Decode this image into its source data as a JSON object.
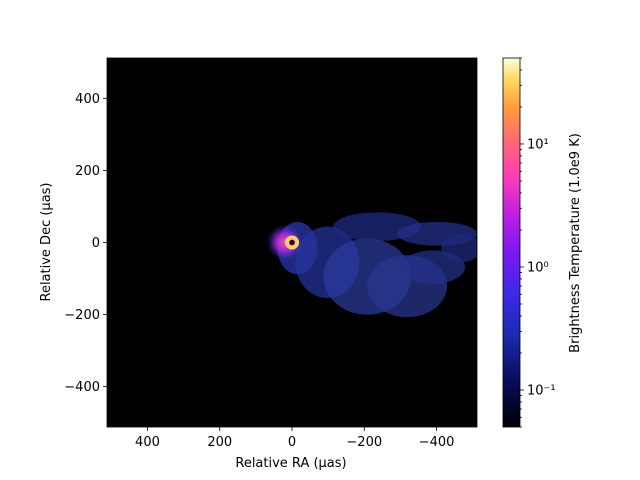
{
  "chart_data": {
    "type": "heatmap",
    "title": "",
    "xlabel": "Relative RA (μas)",
    "ylabel": "Relative Dec (μas)",
    "xlim": [
      512,
      -512
    ],
    "ylim": [
      -512,
      512
    ],
    "x_ticks": [
      400,
      200,
      0,
      -200,
      -400
    ],
    "x_tick_labels": [
      "400",
      "200",
      "0",
      "−200",
      "−400"
    ],
    "y_ticks": [
      400,
      200,
      0,
      -200,
      -400
    ],
    "y_tick_labels": [
      "400",
      "200",
      "0",
      "−200",
      "−400"
    ],
    "colorbar": {
      "label": "Brightness Temperature (1.0e9 K)",
      "scale": "log",
      "range": [
        0.05,
        50
      ],
      "major_ticks": [
        0.1,
        1,
        10
      ],
      "major_tick_labels": [
        "10⁻¹",
        "10⁰",
        "10¹"
      ],
      "colormap": "gnuplot2"
    },
    "features": [
      {
        "name": "photon-ring",
        "center_uas": [
          0,
          0
        ],
        "radius_uas": 20,
        "brightness_1e9K": 30
      },
      {
        "name": "inner-bright-region",
        "center_uas": [
          20,
          0
        ],
        "radius_uas": 50,
        "brightness_1e9K": 2
      },
      {
        "name": "extended-jet-wind",
        "extent_ra_uas": [
          40,
          -512
        ],
        "extent_dec_uas": [
          -220,
          110
        ],
        "brightness_1e9K": 0.35
      }
    ]
  }
}
